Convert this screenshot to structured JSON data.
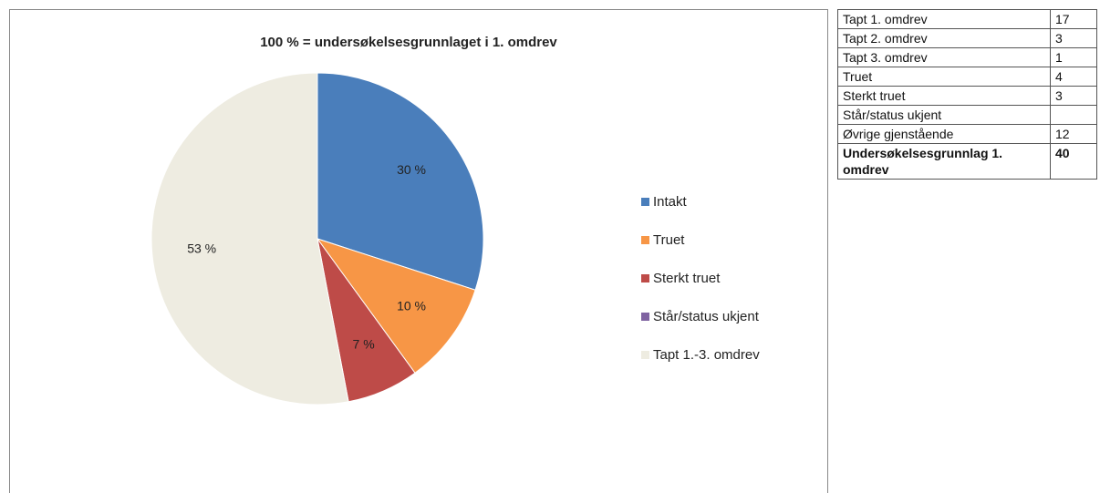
{
  "chart_data": {
    "type": "pie",
    "title": "100 % = undersøkelsesgrunnlaget i 1. omdrev",
    "categories": [
      "Intakt",
      "Truet",
      "Sterkt truet",
      "Står/status ukjent",
      "Tapt 1.-3. omdrev"
    ],
    "values": [
      30,
      10,
      7,
      0,
      53
    ],
    "value_labels": [
      "30 %",
      "10 %",
      "7 %",
      null,
      "53 %"
    ],
    "colors": [
      "#4a7ebb",
      "#f79646",
      "#be4b48",
      "#7f63a1",
      "#eeece1"
    ],
    "legend": "right"
  },
  "table": {
    "rows": [
      [
        "Tapt 1. omdrev",
        "17"
      ],
      [
        "Tapt 2. omdrev",
        "3"
      ],
      [
        "Tapt 3. omdrev",
        "1"
      ],
      [
        "Truet",
        "4"
      ],
      [
        "Sterkt truet",
        "3"
      ],
      [
        "Står/status ukjent",
        null
      ],
      [
        "Øvrige gjenstående",
        "12"
      ],
      [
        "Undersøkelsesgrunnlag 1. omdrev",
        "40"
      ]
    ]
  }
}
